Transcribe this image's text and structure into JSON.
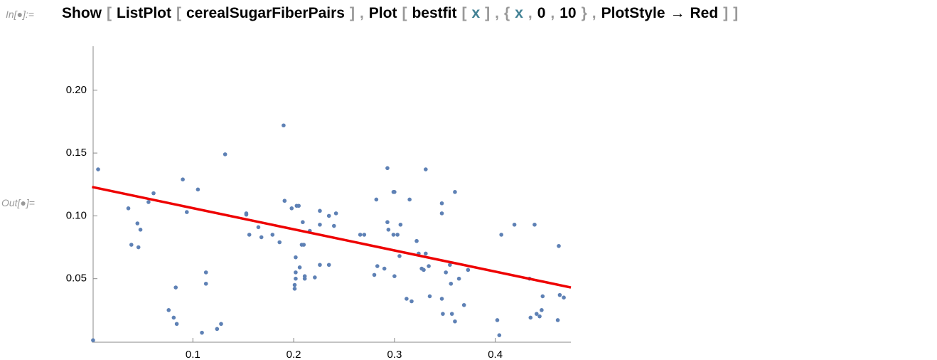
{
  "input": {
    "label": "In[●]:=",
    "tokens": [
      {
        "text": "Show",
        "color": "#000000"
      },
      {
        "text": "[",
        "color": "#999999"
      },
      {
        "text": "ListPlot",
        "color": "#000000"
      },
      {
        "text": "[",
        "color": "#999999"
      },
      {
        "text": "cerealSugarFiberPairs",
        "color": "#000000"
      },
      {
        "text": "]",
        "color": "#999999"
      },
      {
        "text": ",",
        "color": "#999999"
      },
      {
        "text": "Plot",
        "color": "#000000"
      },
      {
        "text": "[",
        "color": "#999999"
      },
      {
        "text": "bestfit",
        "color": "#000000"
      },
      {
        "text": "[",
        "color": "#999999"
      },
      {
        "text": "x",
        "color": "#438295"
      },
      {
        "text": "]",
        "color": "#999999"
      },
      {
        "text": ",",
        "color": "#999999"
      },
      {
        "text": "{",
        "color": "#999999"
      },
      {
        "text": "x",
        "color": "#438295"
      },
      {
        "text": ",",
        "color": "#999999"
      },
      {
        "text": "0",
        "color": "#000000"
      },
      {
        "text": ",",
        "color": "#999999"
      },
      {
        "text": "10",
        "color": "#000000"
      },
      {
        "text": "}",
        "color": "#999999"
      },
      {
        "text": ",",
        "color": "#999999"
      },
      {
        "text": "PlotStyle",
        "color": "#000000"
      },
      {
        "text": "→",
        "color": "#000000"
      },
      {
        "text": "Red",
        "color": "#000000"
      },
      {
        "text": "]",
        "color": "#999999"
      },
      {
        "text": "]",
        "color": "#999999"
      }
    ]
  },
  "output": {
    "label": "Out[●]="
  },
  "chart_data": {
    "type": "scatter",
    "xlim": [
      0,
      0.475
    ],
    "ylim": [
      0,
      0.235
    ],
    "xticks": [
      0.1,
      0.2,
      0.3,
      0.4
    ],
    "yticks": [
      {
        "value": 0.05,
        "label": "0.05"
      },
      {
        "value": 0.1,
        "label": "0.10"
      },
      {
        "value": 0.15,
        "label": "0.15"
      },
      {
        "value": 0.2,
        "label": "0.20"
      }
    ],
    "series": [
      {
        "type": "scatter",
        "color": "#5e81b5",
        "x": [
          0.006,
          0.036,
          0.039,
          0.045,
          0.048,
          0.046,
          0.056,
          0.061,
          0.076,
          0.081,
          0.083,
          0.084,
          0.09,
          0.094,
          0.105,
          0.109,
          0.113,
          0.113,
          0.001,
          0.124,
          0.128,
          0.132,
          0.153,
          0.153,
          0.156,
          0.165,
          0.168,
          0.179,
          0.186,
          0.19,
          0.191,
          0.198,
          0.203,
          0.205,
          0.201,
          0.201,
          0.202,
          0.202,
          0.202,
          0.206,
          0.208,
          0.21,
          0.209,
          0.211,
          0.211,
          0.216,
          0.221,
          0.226,
          0.226,
          0.226,
          0.235,
          0.235,
          0.24,
          0.242,
          0.266,
          0.27,
          0.28,
          0.282,
          0.283,
          0.29,
          0.293,
          0.293,
          0.294,
          0.299,
          0.3,
          0.299,
          0.3,
          0.303,
          0.305,
          0.306,
          0.312,
          0.315,
          0.317,
          0.322,
          0.324,
          0.327,
          0.329,
          0.331,
          0.331,
          0.334,
          0.335,
          0.347,
          0.347,
          0.347,
          0.348,
          0.351,
          0.355,
          0.356,
          0.357,
          0.36,
          0.36,
          0.364,
          0.369,
          0.373,
          0.402,
          0.404,
          0.406,
          0.419,
          0.434,
          0.435,
          0.439,
          0.441,
          0.444,
          0.446,
          0.447,
          0.462,
          0.463,
          0.464,
          0.468
        ],
        "values": [
          0.137,
          0.106,
          0.077,
          0.094,
          0.089,
          0.075,
          0.111,
          0.118,
          0.025,
          0.019,
          0.043,
          0.014,
          0.129,
          0.103,
          0.121,
          0.007,
          0.055,
          0.046,
          0.001,
          0.01,
          0.014,
          0.149,
          0.102,
          0.101,
          0.085,
          0.091,
          0.083,
          0.085,
          0.079,
          0.172,
          0.112,
          0.106,
          0.108,
          0.108,
          0.042,
          0.045,
          0.067,
          0.055,
          0.05,
          0.059,
          0.077,
          0.077,
          0.095,
          0.05,
          0.052,
          0.088,
          0.051,
          0.093,
          0.104,
          0.061,
          0.1,
          0.061,
          0.092,
          0.102,
          0.085,
          0.085,
          0.053,
          0.113,
          0.06,
          0.058,
          0.138,
          0.095,
          0.089,
          0.119,
          0.119,
          0.085,
          0.052,
          0.085,
          0.068,
          0.093,
          0.034,
          0.113,
          0.032,
          0.08,
          0.07,
          0.058,
          0.057,
          0.137,
          0.07,
          0.06,
          0.036,
          0.11,
          0.102,
          0.034,
          0.022,
          0.055,
          0.061,
          0.046,
          0.022,
          0.119,
          0.016,
          0.05,
          0.029,
          0.057,
          0.017,
          0.005,
          0.085,
          0.093,
          0.05,
          0.019,
          0.093,
          0.022,
          0.02,
          0.025,
          0.036,
          0.017,
          0.076,
          0.037,
          0.035
        ]
      },
      {
        "type": "line",
        "color": "#ee0000",
        "x": [
          0,
          0.475
        ],
        "values": [
          0.123,
          0.043
        ]
      }
    ]
  }
}
